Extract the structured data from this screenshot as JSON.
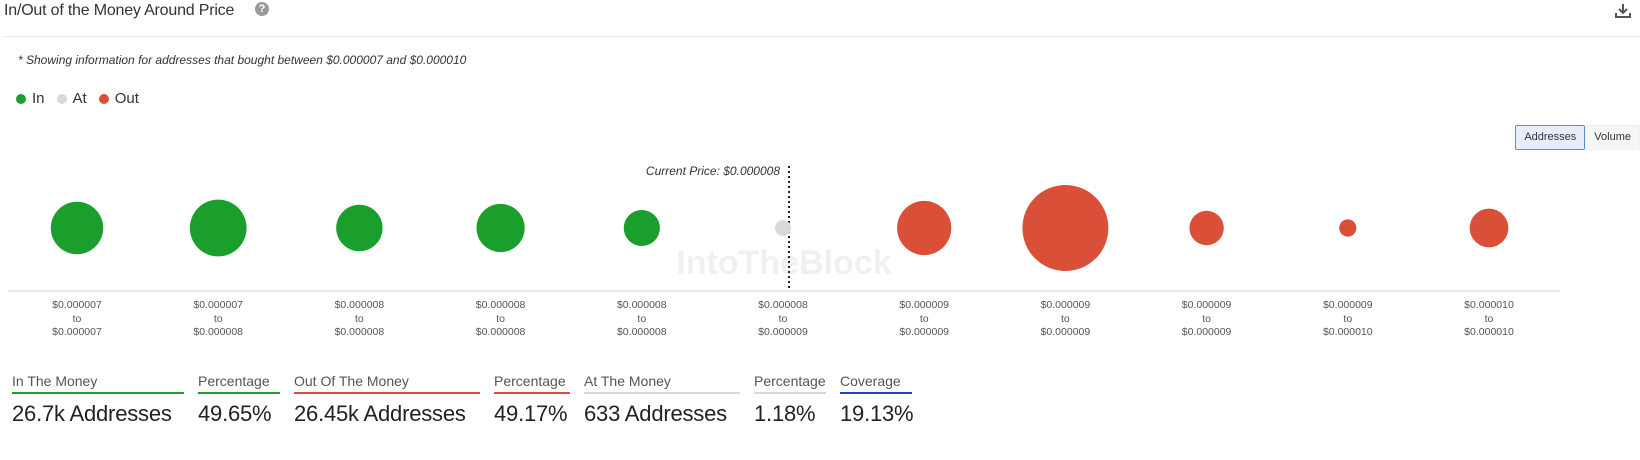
{
  "header": {
    "title": "In/Out of the Money Around Price",
    "help_glyph": "?"
  },
  "note": "* Showing information for addresses that bought between $0.000007 and $0.000010",
  "legend": [
    {
      "label": "In",
      "color": "#1a9e2c"
    },
    {
      "label": "At",
      "color": "#d9d9d9"
    },
    {
      "label": "Out",
      "color": "#d94f38"
    }
  ],
  "toggle": {
    "addresses_label": "Addresses",
    "volume_label": "Volume",
    "selected": "Addresses"
  },
  "colors": {
    "in": "#1a9e2c",
    "at": "#d9d9d9",
    "out": "#d94f38",
    "coverage": "#1f3fcf"
  },
  "icons": {
    "help": "help-circle-icon",
    "download": "download-icon"
  },
  "chart_data": {
    "type": "bubble",
    "current_price_label": "Current Price: $0.000008",
    "watermark": "IntoTheBlock",
    "categories": [
      {
        "from": "$0.000007",
        "to": "$0.000007",
        "status": "in",
        "relative_size": 0.61
      },
      {
        "from": "$0.000007",
        "to": "$0.000008",
        "status": "in",
        "relative_size": 0.66
      },
      {
        "from": "$0.000008",
        "to": "$0.000008",
        "status": "in",
        "relative_size": 0.54
      },
      {
        "from": "$0.000008",
        "to": "$0.000008",
        "status": "in",
        "relative_size": 0.56
      },
      {
        "from": "$0.000008",
        "to": "$0.000008",
        "status": "in",
        "relative_size": 0.42
      },
      {
        "from": "$0.000008",
        "to": "$0.000009",
        "status": "at",
        "relative_size": 0.05
      },
      {
        "from": "$0.000009",
        "to": "$0.000009",
        "status": "out",
        "relative_size": 0.63
      },
      {
        "from": "$0.000009",
        "to": "$0.000009",
        "status": "out",
        "relative_size": 1.0
      },
      {
        "from": "$0.000009",
        "to": "$0.000009",
        "status": "out",
        "relative_size": 0.4
      },
      {
        "from": "$0.000009",
        "to": "$0.000010",
        "status": "out",
        "relative_size": 0.2
      },
      {
        "from": "$0.000010",
        "to": "$0.000010",
        "status": "out",
        "relative_size": 0.45
      }
    ],
    "range_connector": "to"
  },
  "stats": [
    {
      "label": "In The Money",
      "value": "26.7k Addresses",
      "color": "#1a9e2c"
    },
    {
      "label": "Percentage",
      "value": "49.65%",
      "color": "#1a9e2c"
    },
    {
      "label": "Out Of The Money",
      "value": "26.45k Addresses",
      "color": "#d94f38"
    },
    {
      "label": "Percentage",
      "value": "49.17%",
      "color": "#d94f38"
    },
    {
      "label": "At The Money",
      "value": "633 Addresses",
      "color": "#d9d9d9"
    },
    {
      "label": "Percentage",
      "value": "1.18%",
      "color": "#d9d9d9"
    },
    {
      "label": "Coverage",
      "value": "19.13%",
      "color": "#1f3fcf"
    }
  ]
}
